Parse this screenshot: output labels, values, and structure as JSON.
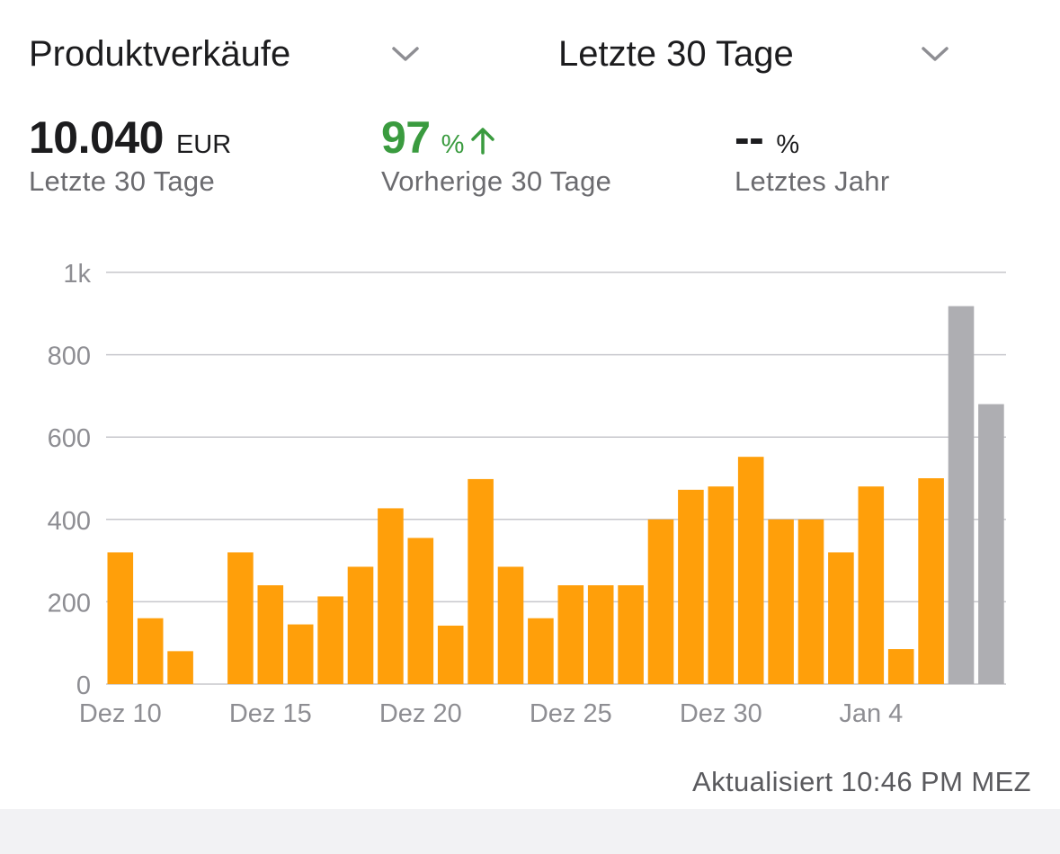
{
  "header": {
    "metric_select": "Produktverkäufe",
    "period_select": "Letzte 30 Tage"
  },
  "stats": {
    "current": {
      "value": "10.040",
      "unit": "EUR",
      "label": "Letzte 30 Tage"
    },
    "previous": {
      "value": "97",
      "unit": "%",
      "label": "Vorherige 30 Tage",
      "trend": "up"
    },
    "last_year": {
      "value": "--",
      "unit": "%",
      "label": "Letztes Jahr"
    }
  },
  "footer": {
    "updated": "Aktualisiert 10:46 PM MEZ"
  },
  "colors": {
    "accent": "#ff9f0a",
    "projected": "#aeaeb2",
    "positive": "#3a9b3f",
    "grid": "#c7c7cc"
  },
  "chart_data": {
    "type": "bar",
    "title": "",
    "xlabel": "",
    "ylabel": "",
    "ylim": [
      0,
      1000
    ],
    "grid": true,
    "yticks": [
      {
        "value": 0,
        "label": "0"
      },
      {
        "value": 200,
        "label": "200"
      },
      {
        "value": 400,
        "label": "400"
      },
      {
        "value": 600,
        "label": "600"
      },
      {
        "value": 800,
        "label": "800"
      },
      {
        "value": 1000,
        "label": "1k"
      }
    ],
    "xticks": [
      {
        "index": 0,
        "label": "Dez 10"
      },
      {
        "index": 5,
        "label": "Dez 15"
      },
      {
        "index": 10,
        "label": "Dez 20"
      },
      {
        "index": 15,
        "label": "Dez 25"
      },
      {
        "index": 20,
        "label": "Dez 30"
      },
      {
        "index": 25,
        "label": "Jan 4"
      }
    ],
    "categories": [
      "Dez 10",
      "Dez 11",
      "Dez 12",
      "Dez 13",
      "Dez 14",
      "Dez 15",
      "Dez 16",
      "Dez 17",
      "Dez 18",
      "Dez 19",
      "Dez 20",
      "Dez 21",
      "Dez 22",
      "Dez 23",
      "Dez 24",
      "Dez 25",
      "Dez 26",
      "Dez 27",
      "Dez 28",
      "Dez 29",
      "Dez 30",
      "Dez 31",
      "Jan 1",
      "Jan 2",
      "Jan 3",
      "Jan 4",
      "Jan 5",
      "Jan 6",
      "Jan 7",
      "Jan 8"
    ],
    "values": [
      320,
      160,
      80,
      0,
      320,
      240,
      145,
      213,
      285,
      427,
      355,
      142,
      498,
      285,
      160,
      240,
      240,
      240,
      400,
      472,
      480,
      552,
      400,
      400,
      320,
      480,
      85,
      500,
      918,
      680
    ],
    "bar_kind": [
      "actual",
      "actual",
      "actual",
      "actual",
      "actual",
      "actual",
      "actual",
      "actual",
      "actual",
      "actual",
      "actual",
      "actual",
      "actual",
      "actual",
      "actual",
      "actual",
      "actual",
      "actual",
      "actual",
      "actual",
      "actual",
      "actual",
      "actual",
      "actual",
      "actual",
      "actual",
      "actual",
      "actual",
      "projected",
      "projected"
    ]
  }
}
